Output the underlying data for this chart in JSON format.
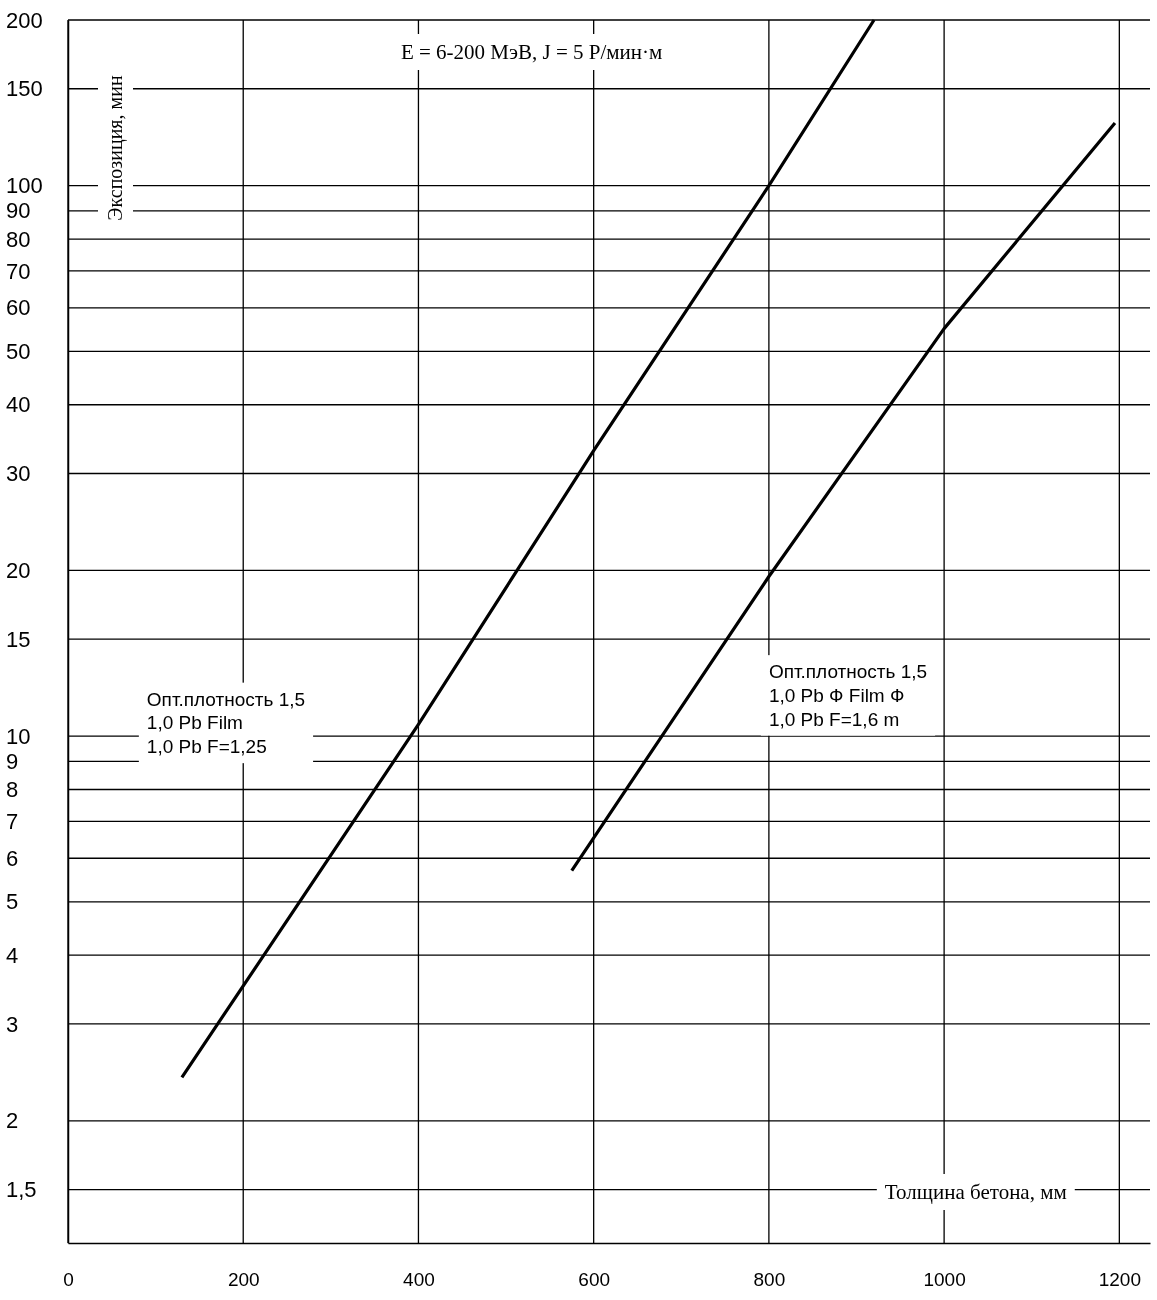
{
  "chart_data": {
    "type": "line",
    "title": "E = 6-200 МэВ,  J = 5 Р/мин·м",
    "xlabel": "Толщина бетона, мм",
    "ylabel": "Экспозиция, мин",
    "x": [
      130,
      400,
      600,
      800,
      920
    ],
    "series": [
      {
        "color": "#000000",
        "values": [
          2.4,
          10.5,
          33,
          100,
          200
        ]
      },
      {
        "color": "#000000",
        "x": [
          575,
          800,
          1000,
          1195
        ],
        "values": [
          5.7,
          19.5,
          55,
          130
        ]
      }
    ],
    "log": "y",
    "xlim": [
      0,
      1235
    ],
    "ylim": [
      1.2,
      200
    ],
    "xticks": [
      0,
      200,
      400,
      600,
      800,
      1000,
      1200
    ],
    "yticks": [
      {
        "value": 1.5,
        "label": "1,5"
      },
      2,
      3,
      4,
      5,
      6,
      7,
      8,
      9,
      10,
      15,
      20,
      30,
      40,
      50,
      60,
      70,
      80,
      90,
      100,
      150,
      200
    ],
    "grid": true,
    "line_style": "solid",
    "marker": "none",
    "annotations": [
      "Опт.плотность 1,5\n1,0 Pb Film\n1,0 Pb F=1,25",
      "Опт.плотность 1,5\n1,0 Pb Ф Film Ф\n1,0 Pb F=1,6 m"
    ]
  }
}
